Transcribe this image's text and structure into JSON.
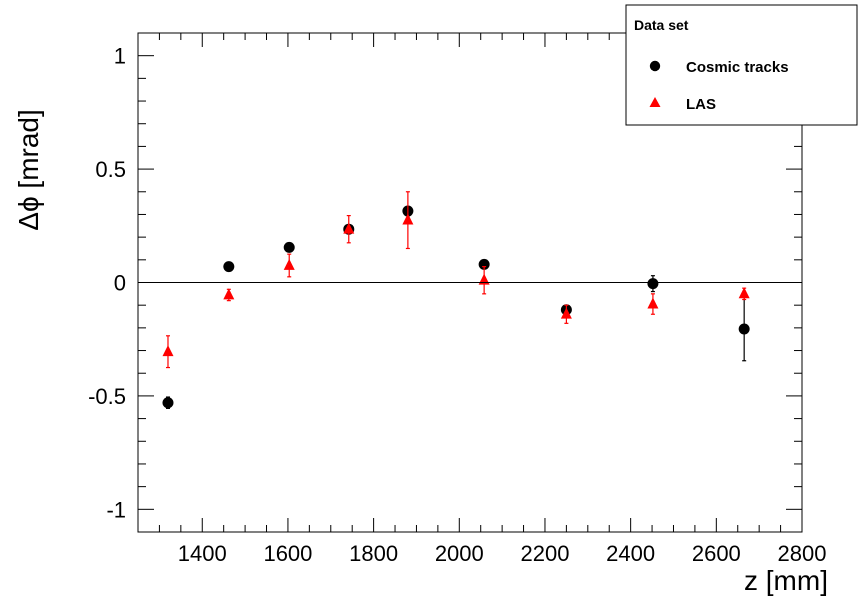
{
  "chart_data": {
    "type": "scatter",
    "title": "",
    "xlabel": "z [mm]",
    "ylabel": "Δϕ [mrad]",
    "xlim": [
      1250,
      2800
    ],
    "ylim": [
      -1.1,
      1.1
    ],
    "xticks": [
      1400,
      1600,
      1800,
      2000,
      2200,
      2400,
      2600,
      2800
    ],
    "xtick_labels": [
      "1400",
      "1600",
      "1800",
      "2000",
      "2200",
      "2400",
      "2600",
      "2800"
    ],
    "yticks": [
      1,
      0.5,
      0,
      -0.5,
      -1
    ],
    "ytick_labels": [
      "1",
      "0.5",
      "0",
      "-0.5",
      "-1"
    ],
    "zero_line": true,
    "grid": false,
    "legend": {
      "title": "Data set",
      "placement": "top-right"
    },
    "series": [
      {
        "name": "Cosmic tracks",
        "marker": "circle",
        "color": "#000000",
        "points": [
          {
            "x": 1320,
            "y": -0.53,
            "err": 0.025
          },
          {
            "x": 1462,
            "y": 0.07,
            "err": 0.015
          },
          {
            "x": 1603,
            "y": 0.155,
            "err": 0.015
          },
          {
            "x": 1742,
            "y": 0.235,
            "err": 0.015
          },
          {
            "x": 1880,
            "y": 0.315,
            "err": 0.02
          },
          {
            "x": 2058,
            "y": 0.08,
            "err": 0.015
          },
          {
            "x": 2250,
            "y": -0.12,
            "err": 0.02
          },
          {
            "x": 2452,
            "y": -0.005,
            "err": 0.035
          },
          {
            "x": 2665,
            "y": -0.205,
            "err": 0.14
          }
        ]
      },
      {
        "name": "LAS",
        "marker": "triangle",
        "color": "#ff0000",
        "points": [
          {
            "x": 1320,
            "y": -0.305,
            "err": 0.07
          },
          {
            "x": 1462,
            "y": -0.055,
            "err": 0.025
          },
          {
            "x": 1603,
            "y": 0.075,
            "err": 0.05
          },
          {
            "x": 1742,
            "y": 0.235,
            "err": 0.06
          },
          {
            "x": 1880,
            "y": 0.275,
            "err": 0.125
          },
          {
            "x": 2058,
            "y": 0.01,
            "err": 0.06
          },
          {
            "x": 2250,
            "y": -0.14,
            "err": 0.04
          },
          {
            "x": 2452,
            "y": -0.095,
            "err": 0.045
          },
          {
            "x": 2665,
            "y": -0.05,
            "err": 0.025
          }
        ]
      }
    ]
  }
}
